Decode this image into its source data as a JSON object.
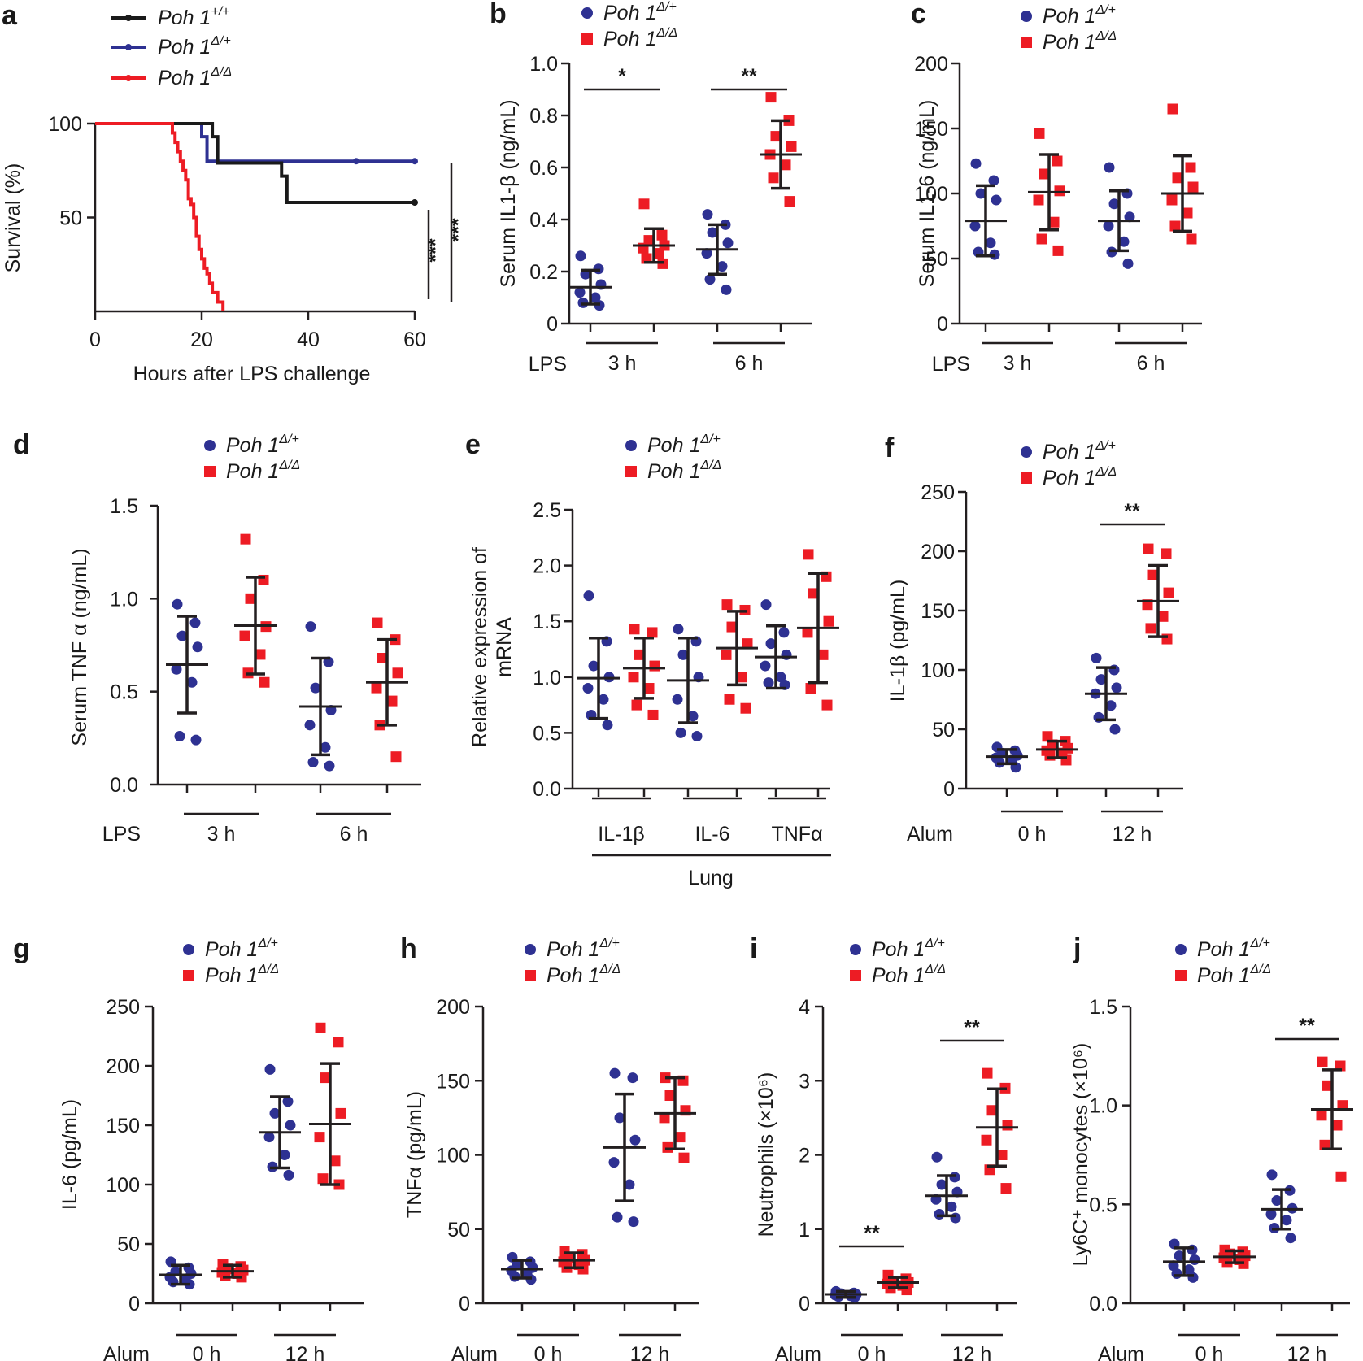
{
  "colors": {
    "het": "#2e3192",
    "ko": "#ed1c24",
    "wt": "#1a1a1a",
    "bar": "#231f20"
  },
  "chart_data": [
    {
      "panel": "a",
      "type": "line",
      "subtype": "kaplan-meier",
      "xlabel": "Hours after LPS challenge",
      "ylabel": "Survival (%)",
      "xlim": [
        0,
        60
      ],
      "ylim": [
        0,
        100
      ],
      "xticks": [
        "0",
        "20",
        "40",
        "60"
      ],
      "yticks": [
        "50",
        "100"
      ],
      "series": [
        {
          "name": "Poh 1",
          "sup": "+/+",
          "color": "#1a1a1a",
          "times": [
            0,
            21,
            22,
            23,
            28,
            35,
            36,
            60
          ],
          "survival": [
            100,
            100,
            93,
            79,
            79,
            72,
            58,
            58
          ]
        },
        {
          "name": "Poh 1",
          "sup": "Δ/+",
          "color": "#2e3192",
          "times": [
            0,
            19,
            20,
            21,
            60
          ],
          "survival": [
            100,
            100,
            93,
            80,
            80
          ]
        },
        {
          "name": "Poh 1",
          "sup": "Δ/Δ",
          "color": "#ed1c24",
          "times": [
            0,
            14,
            14.5,
            15,
            15.5,
            16,
            16.5,
            17,
            17.5,
            18,
            18.5,
            19,
            19.5,
            20,
            20.5,
            21,
            21.5,
            22,
            23,
            24
          ],
          "survival": [
            100,
            100,
            95,
            90,
            85,
            80,
            75,
            70,
            60,
            57,
            50,
            40,
            33,
            28,
            23,
            20,
            15,
            10,
            5,
            0
          ]
        }
      ],
      "significance": [
        "***",
        "***"
      ]
    },
    {
      "panel": "b",
      "type": "scatter",
      "ylabel": "Serum IL1-β (ng/mL)",
      "ylim": [
        0,
        1.0
      ],
      "yticks": [
        "0",
        "0.2",
        "0.4",
        "0.6",
        "0.8",
        "1.0"
      ],
      "treatment": "LPS",
      "groups": [
        "3 h",
        "6 h"
      ],
      "series": [
        {
          "name": "Poh 1",
          "sup": "Δ/+",
          "marker": "circle",
          "color": "#2e3192",
          "means": [
            0.14,
            0.285
          ],
          "sd": [
            0.065,
            0.095
          ],
          "points": [
            [
              0.26,
              0.21,
              0.19,
              0.15,
              0.12,
              0.1,
              0.08,
              0.07
            ],
            [
              0.42,
              0.38,
              0.35,
              0.31,
              0.27,
              0.22,
              0.17,
              0.13
            ]
          ]
        },
        {
          "name": "Poh 1",
          "sup": "Δ/Δ",
          "marker": "square",
          "color": "#ed1c24",
          "means": [
            0.3,
            0.65
          ],
          "sd": [
            0.065,
            0.13
          ],
          "points": [
            [
              0.46,
              0.34,
              0.32,
              0.3,
              0.29,
              0.27,
              0.25,
              0.23
            ],
            [
              0.87,
              0.78,
              0.72,
              0.68,
              0.65,
              0.61,
              0.56,
              0.47
            ]
          ]
        }
      ],
      "significance": [
        {
          "group": "3 h",
          "label": "*"
        },
        {
          "group": "6 h",
          "label": "**"
        }
      ]
    },
    {
      "panel": "c",
      "type": "scatter",
      "ylabel": "Serum IL1-6 (ng/mL)",
      "ylim": [
        0,
        200
      ],
      "yticks": [
        "0",
        "50",
        "100",
        "150",
        "200"
      ],
      "treatment": "LPS",
      "groups": [
        "3 h",
        "6 h"
      ],
      "series": [
        {
          "name": "Poh 1",
          "sup": "Δ/+",
          "marker": "circle",
          "color": "#2e3192",
          "means": [
            79,
            79
          ],
          "sd": [
            27,
            23
          ],
          "points": [
            [
              123,
              110,
              100,
              95,
              75,
              62,
              55,
              53
            ],
            [
              120,
              100,
              92,
              82,
              75,
              63,
              55,
              46
            ]
          ]
        },
        {
          "name": "Poh 1",
          "sup": "Δ/Δ",
          "marker": "square",
          "color": "#ed1c24",
          "means": [
            101,
            100
          ],
          "sd": [
            29,
            29
          ],
          "points": [
            [
              146,
              125,
              115,
              102,
              95,
              78,
              65,
              56
            ],
            [
              165,
              120,
              112,
              105,
              95,
              85,
              75,
              65
            ]
          ]
        }
      ],
      "significance": []
    },
    {
      "panel": "d",
      "type": "scatter",
      "ylabel": "Serum TNF α (ng/mL)",
      "ylim": [
        0,
        1.5
      ],
      "yticks": [
        "0.0",
        "0.5",
        "1.0",
        "1.5"
      ],
      "treatment": "LPS",
      "groups": [
        "3 h",
        "6 h"
      ],
      "series": [
        {
          "name": "Poh 1",
          "sup": "Δ/+",
          "marker": "circle",
          "color": "#2e3192",
          "means": [
            0.645,
            0.42
          ],
          "sd": [
            0.26,
            0.26
          ],
          "points": [
            [
              0.97,
              0.87,
              0.8,
              0.74,
              0.62,
              0.55,
              0.26,
              0.24
            ],
            [
              0.85,
              0.66,
              0.52,
              0.4,
              0.32,
              0.2,
              0.12,
              0.1
            ]
          ]
        },
        {
          "name": "Poh 1",
          "sup": "Δ/Δ",
          "marker": "square",
          "color": "#ed1c24",
          "means": [
            0.855,
            0.55
          ],
          "sd": [
            0.26,
            0.23
          ],
          "points": [
            [
              1.32,
              1.1,
              1.0,
              0.85,
              0.8,
              0.7,
              0.6,
              0.55
            ],
            [
              0.87,
              0.78,
              0.68,
              0.6,
              0.52,
              0.45,
              0.32,
              0.15
            ]
          ]
        }
      ],
      "significance": []
    },
    {
      "panel": "e",
      "type": "scatter",
      "ylabel": "Relative expression of mRNA",
      "ylim": [
        0,
        2.5
      ],
      "yticks": [
        "0.0",
        "0.5",
        "1.0",
        "1.5",
        "2.0",
        "2.5"
      ],
      "treatment": "Lung",
      "groups": [
        "IL-1β",
        "IL-6",
        "TNFα"
      ],
      "series": [
        {
          "name": "Poh 1",
          "sup": "Δ/+",
          "marker": "circle",
          "color": "#2e3192",
          "means": [
            0.99,
            0.97,
            1.18
          ],
          "sd": [
            0.36,
            0.38,
            0.28
          ],
          "points": [
            [
              1.73,
              1.32,
              1.1,
              1.0,
              0.9,
              0.8,
              0.66,
              0.57
            ],
            [
              1.43,
              1.32,
              1.2,
              1.0,
              0.8,
              0.65,
              0.5,
              0.47
            ],
            [
              1.65,
              1.4,
              1.3,
              1.2,
              1.1,
              1.0,
              0.95,
              0.93
            ]
          ]
        },
        {
          "name": "Poh 1",
          "sup": "Δ/Δ",
          "marker": "square",
          "color": "#ed1c24",
          "means": [
            1.08,
            1.26,
            1.44
          ],
          "sd": [
            0.27,
            0.33,
            0.49
          ],
          "points": [
            [
              1.43,
              1.4,
              1.2,
              1.1,
              1.0,
              0.9,
              0.75,
              0.66
            ],
            [
              1.65,
              1.6,
              1.45,
              1.3,
              1.2,
              1.0,
              0.8,
              0.72
            ],
            [
              2.1,
              1.9,
              1.75,
              1.5,
              1.4,
              1.2,
              0.9,
              0.75
            ]
          ]
        }
      ],
      "significance": []
    },
    {
      "panel": "f",
      "type": "scatter",
      "ylabel": "IL-1β (pg/mL)",
      "ylim": [
        0,
        250
      ],
      "yticks": [
        "0",
        "50",
        "100",
        "150",
        "200",
        "250"
      ],
      "treatment": "Alum",
      "groups": [
        "0 h",
        "12 h"
      ],
      "series": [
        {
          "name": "Poh 1",
          "sup": "Δ/+",
          "marker": "circle",
          "color": "#2e3192",
          "means": [
            27,
            80
          ],
          "sd": [
            6,
            22
          ],
          "points": [
            [
              35,
              32,
              30,
              28,
              26,
              24,
              22,
              18
            ],
            [
              110,
              100,
              92,
              85,
              80,
              70,
              60,
              50
            ]
          ]
        },
        {
          "name": "Poh 1",
          "sup": "Δ/Δ",
          "marker": "square",
          "color": "#ed1c24",
          "means": [
            33,
            158
          ],
          "sd": [
            7,
            30
          ],
          "points": [
            [
              44,
              40,
              37,
              34,
              32,
              30,
              28,
              24
            ],
            [
              202,
              198,
              180,
              165,
              155,
              145,
              135,
              126
            ]
          ]
        }
      ],
      "significance": [
        {
          "group": "12 h",
          "label": "**"
        }
      ]
    },
    {
      "panel": "g",
      "type": "scatter",
      "ylabel": "IL-6 (pg/mL)",
      "ylim": [
        0,
        250
      ],
      "yticks": [
        "0",
        "50",
        "100",
        "150",
        "200",
        "250"
      ],
      "treatment": "Alum",
      "groups": [
        "0 h",
        "12 h"
      ],
      "series": [
        {
          "name": "Poh 1",
          "sup": "Δ/+",
          "marker": "circle",
          "color": "#2e3192",
          "means": [
            24,
            144
          ],
          "sd": [
            8,
            30
          ],
          "points": [
            [
              35,
              30,
              27,
              25,
              22,
              20,
              18,
              16
            ],
            [
              197,
              170,
              160,
              150,
              140,
              125,
              115,
              108
            ]
          ]
        },
        {
          "name": "Poh 1",
          "sup": "Δ/Δ",
          "marker": "square",
          "color": "#ed1c24",
          "means": [
            27,
            151
          ],
          "sd": [
            5,
            51
          ],
          "points": [
            [
              33,
              31,
              29,
              28,
              26,
              25,
              23,
              22
            ],
            [
              232,
              220,
              190,
              160,
              140,
              120,
              105,
              100
            ]
          ]
        }
      ],
      "significance": []
    },
    {
      "panel": "h",
      "type": "scatter",
      "ylabel": "TNFα (pg/mL)",
      "ylim": [
        0,
        200
      ],
      "yticks": [
        "0",
        "50",
        "100",
        "150",
        "200"
      ],
      "treatment": "Alum",
      "groups": [
        "0 h",
        "12 h"
      ],
      "series": [
        {
          "name": "Poh 1",
          "sup": "Δ/+",
          "marker": "circle",
          "color": "#2e3192",
          "means": [
            23,
            105
          ],
          "sd": [
            6,
            36
          ],
          "points": [
            [
              31,
              28,
              26,
              24,
              22,
              20,
              18,
              16
            ],
            [
              155,
              152,
              125,
              110,
              95,
              80,
              58,
              55
            ]
          ]
        },
        {
          "name": "Poh 1",
          "sup": "Δ/Δ",
          "marker": "square",
          "color": "#ed1c24",
          "means": [
            29,
            128
          ],
          "sd": [
            5,
            24
          ],
          "points": [
            [
              35,
              33,
              31,
              29,
              28,
              26,
              24,
              23
            ],
            [
              152,
              150,
              140,
              130,
              125,
              112,
              105,
              98
            ]
          ]
        }
      ],
      "significance": []
    },
    {
      "panel": "i",
      "type": "scatter",
      "ylabel": "Neutrophils (×10⁶)",
      "ylim": [
        0,
        4
      ],
      "yticks": [
        "0",
        "1",
        "2",
        "3",
        "4"
      ],
      "treatment": "Alum",
      "groups": [
        "0 h",
        "12 h"
      ],
      "series": [
        {
          "name": "Poh 1",
          "sup": "Δ/+",
          "marker": "circle",
          "color": "#2e3192",
          "means": [
            0.12,
            1.45
          ],
          "sd": [
            0.04,
            0.27
          ],
          "points": [
            [
              0.16,
              0.14,
              0.13,
              0.12,
              0.11,
              0.1,
              0.09,
              0.08
            ],
            [
              1.97,
              1.7,
              1.6,
              1.5,
              1.4,
              1.3,
              1.2,
              1.15
            ]
          ]
        },
        {
          "name": "Poh 1",
          "sup": "Δ/Δ",
          "marker": "square",
          "color": "#ed1c24",
          "means": [
            0.28,
            2.37
          ],
          "sd": [
            0.07,
            0.52
          ],
          "points": [
            [
              0.38,
              0.33,
              0.3,
              0.28,
              0.26,
              0.24,
              0.21,
              0.18
            ],
            [
              3.1,
              2.9,
              2.6,
              2.4,
              2.2,
              2.0,
              1.8,
              1.55
            ]
          ]
        }
      ],
      "significance": [
        {
          "group": "0 h",
          "label": "**"
        },
        {
          "group": "12 h",
          "label": "**"
        }
      ]
    },
    {
      "panel": "j",
      "type": "scatter",
      "ylabel": "Ly6C⁺ monocytes (×10⁶)",
      "ylim": [
        0,
        1.5
      ],
      "yticks": [
        "0.0",
        "0.5",
        "1.0",
        "1.5"
      ],
      "treatment": "Alum",
      "groups": [
        "0 h",
        "12 h"
      ],
      "series": [
        {
          "name": "Poh 1",
          "sup": "Δ/+",
          "marker": "circle",
          "color": "#2e3192",
          "means": [
            0.21,
            0.475
          ],
          "sd": [
            0.07,
            0.1
          ],
          "points": [
            [
              0.3,
              0.27,
              0.24,
              0.22,
              0.19,
              0.17,
              0.15,
              0.13
            ],
            [
              0.65,
              0.57,
              0.52,
              0.48,
              0.45,
              0.42,
              0.38,
              0.33
            ]
          ]
        },
        {
          "name": "Poh 1",
          "sup": "Δ/Δ",
          "marker": "square",
          "color": "#ed1c24",
          "means": [
            0.235,
            0.98
          ],
          "sd": [
            0.03,
            0.2
          ],
          "points": [
            [
              0.27,
              0.26,
              0.25,
              0.24,
              0.23,
              0.22,
              0.21,
              0.2
            ],
            [
              1.22,
              1.2,
              1.1,
              1.0,
              0.95,
              0.9,
              0.8,
              0.64
            ]
          ]
        }
      ],
      "significance": [
        {
          "group": "12 h",
          "label": "**"
        }
      ]
    }
  ]
}
